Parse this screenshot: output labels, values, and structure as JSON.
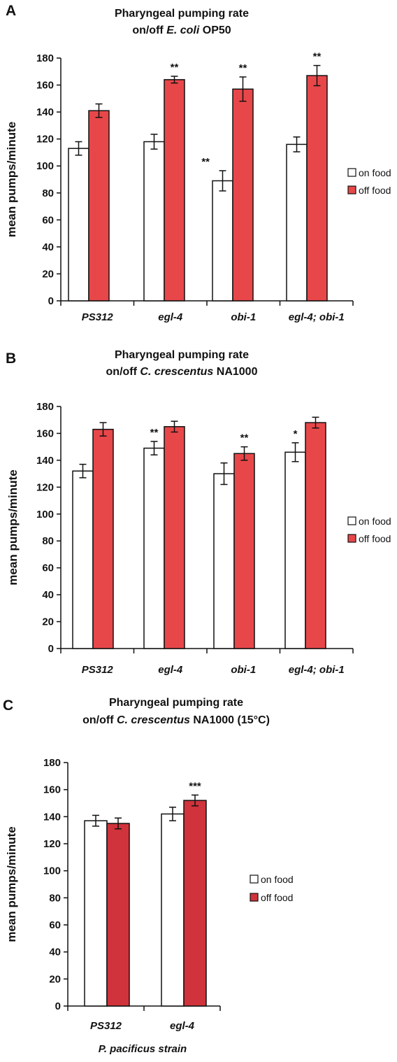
{
  "colors": {
    "on_food": "#ffffff",
    "off_food_AB": "#e8474a",
    "off_food_C": "#d0333b",
    "stroke": "#111111"
  },
  "chart_data": [
    {
      "panel": "A",
      "type": "bar",
      "title_line1": "Pharyngeal pumping rate",
      "title_line2": [
        {
          "text": "on/off ",
          "italic": false
        },
        {
          "text": "E. coli",
          "italic": true
        },
        {
          "text": " OP50",
          "italic": false
        }
      ],
      "ylabel": "mean pumps/minute",
      "xlabel": "",
      "ylim": [
        0,
        180
      ],
      "yticks": [
        0,
        20,
        40,
        60,
        80,
        100,
        120,
        140,
        160,
        180
      ],
      "categories": [
        "PS312",
        "egl-4",
        "obi-1",
        "egl-4; obi-1"
      ],
      "series": [
        {
          "name": "on food",
          "values": [
            113,
            118,
            89,
            116
          ],
          "errors": [
            5,
            5.5,
            7.5,
            5.5
          ],
          "sig": [
            "",
            "",
            "**",
            ""
          ]
        },
        {
          "name": "off food",
          "values": [
            141,
            164,
            157,
            167
          ],
          "errors": [
            5,
            2.5,
            9,
            7.5
          ],
          "sig": [
            "",
            "**",
            "**",
            "**"
          ]
        }
      ],
      "legend": "right"
    },
    {
      "panel": "B",
      "type": "bar",
      "title_line1": "Pharyngeal pumping rate",
      "title_line2": [
        {
          "text": "on/off ",
          "italic": false
        },
        {
          "text": "C. crescentus",
          "italic": true
        },
        {
          "text": " NA1000",
          "italic": false
        }
      ],
      "ylabel": "mean pumps/minute",
      "xlabel": "",
      "ylim": [
        0,
        180
      ],
      "yticks": [
        0,
        20,
        40,
        60,
        80,
        100,
        120,
        140,
        160,
        180
      ],
      "categories": [
        "PS312",
        "egl-4",
        "obi-1",
        "egl-4; obi-1"
      ],
      "series": [
        {
          "name": "on food",
          "values": [
            132,
            149,
            130,
            146
          ],
          "errors": [
            5,
            5,
            8,
            7
          ],
          "sig": [
            "",
            "**",
            "",
            "*"
          ]
        },
        {
          "name": "off food",
          "values": [
            163,
            165,
            145,
            168
          ],
          "errors": [
            5,
            4,
            5,
            4
          ],
          "sig": [
            "",
            "",
            "**",
            ""
          ]
        }
      ],
      "legend": "right"
    },
    {
      "panel": "C",
      "type": "bar",
      "title_line1": "Pharyngeal pumping rate",
      "title_line2": [
        {
          "text": "on/off ",
          "italic": false
        },
        {
          "text": "C. crescentus",
          "italic": true
        },
        {
          "text": " NA1000 (15°C)",
          "italic": false
        }
      ],
      "ylabel": "mean pumps/minute",
      "xlabel": "P. pacificus strain",
      "ylim": [
        0,
        180
      ],
      "yticks": [
        0,
        20,
        40,
        60,
        80,
        100,
        120,
        140,
        160,
        180
      ],
      "categories": [
        "PS312",
        "egl-4"
      ],
      "series": [
        {
          "name": "on food",
          "values": [
            137,
            142
          ],
          "errors": [
            4,
            5
          ],
          "sig": [
            "",
            ""
          ]
        },
        {
          "name": "off food",
          "values": [
            135,
            152
          ],
          "errors": [
            4,
            4
          ],
          "sig": [
            "",
            "***"
          ]
        }
      ],
      "legend": "right"
    }
  ]
}
